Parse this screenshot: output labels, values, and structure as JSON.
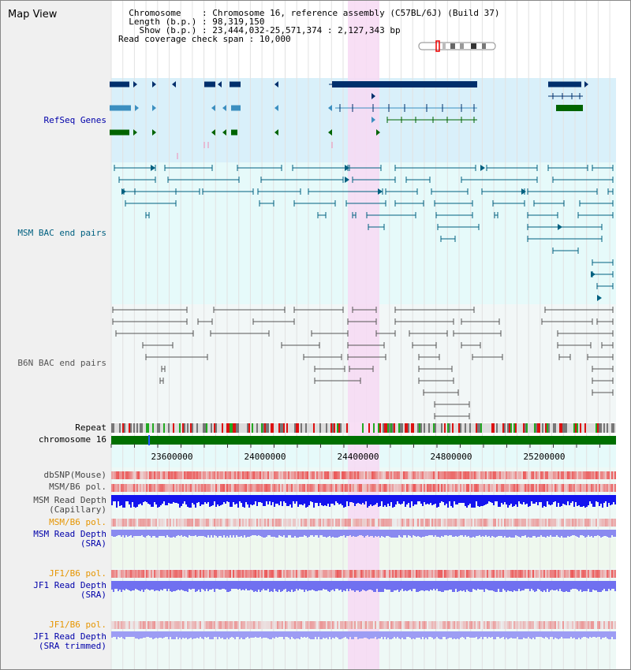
{
  "window": {
    "title": "Map View"
  },
  "info": {
    "chromosome_label": "Chromosome",
    "chromosome_value": "Chromosome 16, reference assembly (C57BL/6J) (Build 37)",
    "length_label": "Length (b.p.)",
    "length_value": "98,319,150",
    "show_label": "Show (b.p.)",
    "show_value": "23,444,032-25,571,374 : 2,127,343 bp",
    "coverage_label": "Read coverage check span",
    "coverage_value": "10,000"
  },
  "tracks": {
    "refseq": "RefSeq Genes",
    "msm_bac": "MSM BAC end pairs",
    "b6n_bac": "B6N BAC end pairs",
    "repeat": "Repeat",
    "chromosome": "chromosome 16",
    "dbsnp": "dbSNP(Mouse)",
    "msm_b6_pol": "MSM/B6 pol.",
    "msm_depth_cap_1": "MSM Read Depth",
    "msm_depth_cap_2": "(Capillary)",
    "msm_b6_pol_sra": "MSM/B6 pol.",
    "msm_depth_sra_1": "MSM Read Depth",
    "msm_depth_sra_2": "(SRA)",
    "jf1_b6_pol": "JF1/B6 pol.",
    "jf1_depth_1": "JF1 Read Depth",
    "jf1_depth_2": "(SRA)",
    "jf1_b6_pol_trim": "JF1/B6 pol.",
    "jf1_depth_trim_1": "JF1 Read Depth",
    "jf1_depth_trim_2": "(SRA trimmed)"
  },
  "ruler": {
    "ticks": [
      "23600000",
      "24000000",
      "24400000",
      "24800000",
      "25200000"
    ]
  },
  "colors": {
    "refseq_bg": "#d9f0fa",
    "msm_bg": "#e6fafa",
    "b6n_bg": "#f2f7f7",
    "highlight": "#f7d9f3",
    "msm_color": "#006080",
    "b6n_color": "#555555",
    "gene_navy": "#002f6c",
    "gene_teal": "#3c8fc0",
    "gene_green": "#006400",
    "label_blue": "#0000aa",
    "label_orange": "#e69500"
  }
}
